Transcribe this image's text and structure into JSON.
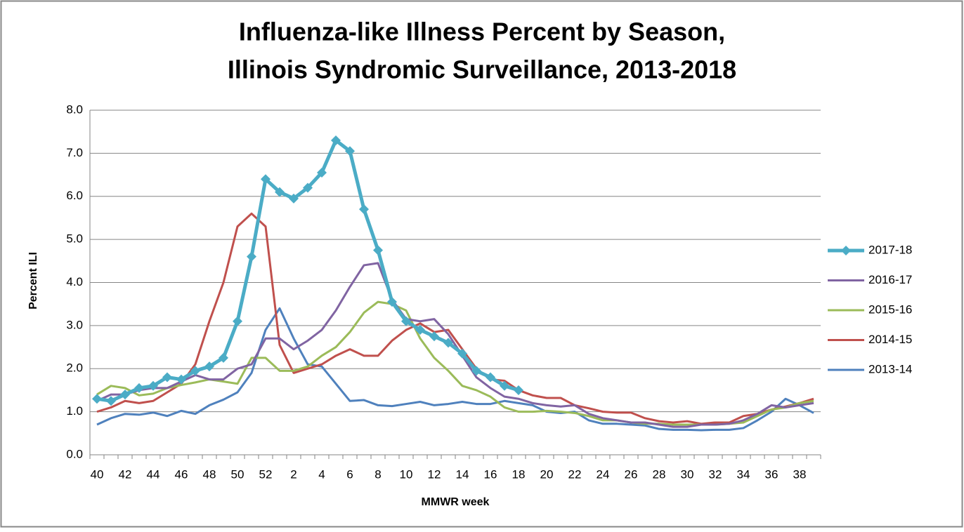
{
  "chart_data": {
    "type": "line",
    "title": [
      "Influenza-like Illness Percent by Season,",
      "Illinois Syndromic Surveillance, 2013-2018"
    ],
    "x_label": "MMWR week",
    "y_label": "Percent ILI",
    "categories": [
      40,
      null,
      42,
      null,
      44,
      null,
      46,
      null,
      48,
      null,
      50,
      null,
      52,
      null,
      2,
      null,
      4,
      null,
      6,
      null,
      8,
      null,
      10,
      null,
      12,
      null,
      14,
      null,
      16,
      null,
      18,
      null,
      20,
      null,
      22,
      null,
      24,
      null,
      26,
      null,
      28,
      null,
      30,
      null,
      32,
      null,
      34,
      null,
      36,
      null,
      38,
      null
    ],
    "ylim": [
      0,
      8
    ],
    "yticks": [
      {
        "value": 0,
        "label": "0.0"
      },
      {
        "value": 1,
        "label": "1.0"
      },
      {
        "value": 2,
        "label": "2.0"
      },
      {
        "value": 3,
        "label": "3.0"
      },
      {
        "value": 4,
        "label": "4.0"
      },
      {
        "value": 5,
        "label": "5.0"
      },
      {
        "value": 6,
        "label": "6.0"
      },
      {
        "value": 7,
        "label": "7.0"
      },
      {
        "value": 8,
        "label": "8.0"
      }
    ],
    "grid": true,
    "legend": "right",
    "series": [
      {
        "name": "2017-18",
        "color": "#4bacc6",
        "width": 5,
        "marker": "diamond",
        "values": [
          1.3,
          1.25,
          1.4,
          1.55,
          1.6,
          1.8,
          1.75,
          1.95,
          2.05,
          2.25,
          3.1,
          4.6,
          6.4,
          6.1,
          5.95,
          6.2,
          6.55,
          7.3,
          7.05,
          5.7,
          4.75,
          3.55,
          3.1,
          2.9,
          2.75,
          2.6,
          2.35,
          1.95,
          1.8,
          1.6,
          1.5,
          null,
          null,
          null,
          null,
          null,
          null,
          null,
          null,
          null,
          null,
          null,
          null,
          null,
          null,
          null,
          null,
          null,
          null,
          null,
          null,
          null
        ]
      },
      {
        "name": "2016-17",
        "color": "#8064a2",
        "width": 3,
        "values": [
          1.25,
          1.4,
          1.4,
          1.5,
          1.55,
          1.55,
          1.7,
          1.85,
          1.75,
          1.75,
          2.0,
          2.1,
          2.7,
          2.7,
          2.45,
          2.65,
          2.9,
          3.35,
          3.9,
          4.4,
          4.45,
          3.6,
          3.15,
          3.1,
          3.15,
          2.8,
          2.3,
          1.8,
          1.55,
          1.35,
          1.3,
          1.2,
          1.15,
          1.12,
          1.15,
          0.95,
          0.85,
          0.8,
          0.75,
          0.75,
          0.7,
          0.65,
          0.65,
          0.7,
          0.7,
          0.72,
          0.8,
          0.95,
          1.15,
          1.1,
          1.15,
          1.2
        ]
      },
      {
        "name": "2015-16",
        "color": "#9bbb59",
        "width": 3,
        "values": [
          1.4,
          1.6,
          1.55,
          1.38,
          1.42,
          1.55,
          1.62,
          1.68,
          1.75,
          1.7,
          1.65,
          2.25,
          2.25,
          1.95,
          1.95,
          2.05,
          2.3,
          2.5,
          2.85,
          3.3,
          3.55,
          3.5,
          3.35,
          2.7,
          2.25,
          1.95,
          1.6,
          1.5,
          1.35,
          1.1,
          1.0,
          1.0,
          1.02,
          1.0,
          0.97,
          0.9,
          0.8,
          0.8,
          0.75,
          0.72,
          0.72,
          0.7,
          0.7,
          0.7,
          0.7,
          0.72,
          0.75,
          0.9,
          1.05,
          1.1,
          1.2,
          1.25
        ]
      },
      {
        "name": "2014-15",
        "color": "#c0504d",
        "width": 3,
        "values": [
          1.0,
          1.1,
          1.25,
          1.2,
          1.25,
          1.45,
          1.65,
          2.1,
          3.1,
          4.0,
          5.3,
          5.6,
          5.3,
          2.55,
          1.9,
          2.0,
          2.1,
          2.3,
          2.45,
          2.3,
          2.3,
          2.65,
          2.9,
          3.05,
          2.85,
          2.9,
          2.45,
          2.0,
          1.75,
          1.72,
          1.5,
          1.38,
          1.32,
          1.32,
          1.15,
          1.08,
          1.0,
          0.98,
          0.98,
          0.85,
          0.78,
          0.75,
          0.78,
          0.72,
          0.75,
          0.75,
          0.9,
          0.95,
          1.05,
          1.12,
          1.2,
          1.3
        ]
      },
      {
        "name": "2013-14",
        "color": "#4f81bd",
        "width": 3,
        "values": [
          0.7,
          0.85,
          0.95,
          0.93,
          0.98,
          0.9,
          1.02,
          0.95,
          1.15,
          1.28,
          1.45,
          1.9,
          2.9,
          3.4,
          2.7,
          2.1,
          2.05,
          1.65,
          1.25,
          1.27,
          1.15,
          1.13,
          1.18,
          1.23,
          1.15,
          1.18,
          1.23,
          1.18,
          1.18,
          1.25,
          1.2,
          1.15,
          1.0,
          0.97,
          1.0,
          0.8,
          0.72,
          0.72,
          0.7,
          0.68,
          0.6,
          0.58,
          0.58,
          0.57,
          0.58,
          0.58,
          0.62,
          0.8,
          1.0,
          1.3,
          1.15,
          0.97
        ]
      }
    ]
  }
}
